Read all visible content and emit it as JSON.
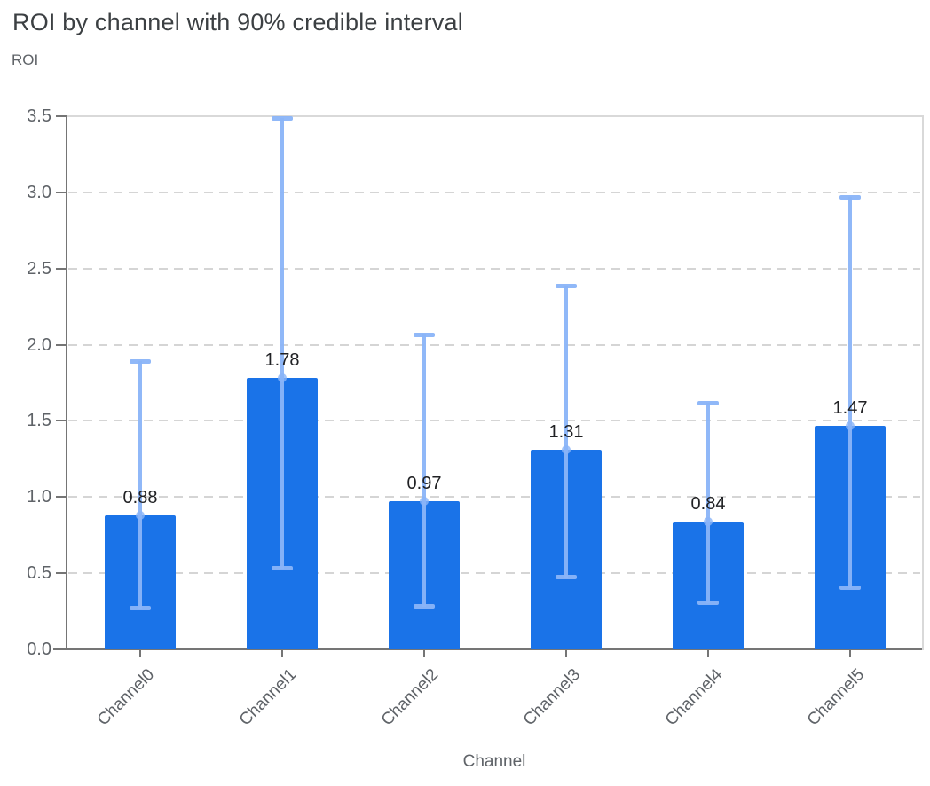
{
  "header": {
    "title": "ROI by channel with 90% credible interval"
  },
  "chart_data": {
    "type": "bar",
    "title": "ROI by channel with 90% credible interval",
    "ylabel": "ROI",
    "xlabel": "Channel",
    "categories": [
      "Channel0",
      "Channel1",
      "Channel2",
      "Channel3",
      "Channel4",
      "Channel5"
    ],
    "series": [
      {
        "name": "ROI",
        "values": [
          0.88,
          1.78,
          0.97,
          1.31,
          0.84,
          1.47
        ],
        "value_labels": [
          "0.88",
          "1.78",
          "0.97",
          "1.31",
          "0.84",
          "1.47"
        ],
        "ci_low": [
          0.27,
          0.53,
          0.28,
          0.47,
          0.3,
          0.4
        ],
        "ci_high": [
          1.89,
          3.49,
          2.07,
          2.39,
          1.62,
          2.97
        ]
      }
    ],
    "interval_label": "90% credible interval",
    "ylim": [
      0,
      3.5
    ],
    "ytick_labels": [
      "0.0",
      "0.5",
      "1.0",
      "1.5",
      "2.0",
      "2.5",
      "3.0",
      "3.5"
    ],
    "grid": {
      "horizontal": true,
      "style": "dashed"
    },
    "legend": "none",
    "colors": {
      "bar": "#1a73e8",
      "error_bar": "#8ab4f8",
      "gridline": "#d5d5d5",
      "chart_border": "#d9d9d9",
      "axis_line": "#757575",
      "tick_label": "#5f6368",
      "axis_title": "#5f6368",
      "value_label": "#202124",
      "title": "#3c4043",
      "background": "#ffffff"
    }
  }
}
